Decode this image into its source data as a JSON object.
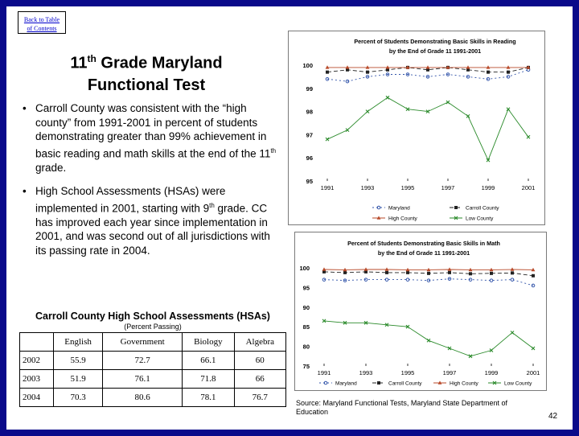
{
  "slide": {
    "toc_link_line1": "Back to Table",
    "toc_link_line2": "of Contents",
    "title_line1_pre": "11",
    "title_line1_sup": "th",
    "title_line1_post": " Grade Maryland",
    "title_line2": "Functional Test",
    "bullet1_pre": "Carroll County was consistent with the “high county” from 1991-2001 in percent of students demonstrating greater than 99% achievement in basic reading and math skills at the end of the 11",
    "bullet1_sup": "th",
    "bullet1_post": " grade.",
    "bullet2_pre": "High School Assessments (HSAs) were implemented in 2001, starting with 9",
    "bullet2_sup": "th",
    "bullet2_post": " grade. CC has improved each year since implementation in 2001, and was second out of all jurisdictions with its passing rate in 2004.",
    "source": "Source: Maryland Functional Tests, Maryland State Department of Education",
    "page_number": "42",
    "frame_color": "#0a0a8a"
  },
  "hsa_table": {
    "title": "Carroll County High School Assessments (HSAs)",
    "subtitle": "(Percent Passing)",
    "columns": [
      "",
      "English",
      "Government",
      "Biology",
      "Algebra"
    ],
    "rows": [
      [
        "2002",
        "55.9",
        "72.7",
        "66.1",
        "60"
      ],
      [
        "2003",
        "51.9",
        "76.1",
        "71.8",
        "66"
      ],
      [
        "2004",
        "70.3",
        "80.6",
        "78.1",
        "76.7"
      ]
    ]
  },
  "chart_data": [
    {
      "type": "line",
      "title": "Percent of Students Demonstrating Basic Skills in Reading by the End of Grade 11 1991-2001",
      "title_line1": "Percent of Students Demonstrating Basic Skills in Reading",
      "title_line2": "by the End of Grade 11 1991-2001",
      "x": [
        1991,
        1992,
        1993,
        1994,
        1995,
        1996,
        1997,
        1998,
        1999,
        2000,
        2001
      ],
      "x_tick_labels": [
        "1991",
        "1993",
        "1995",
        "1997",
        "1999",
        "2001"
      ],
      "ylim": [
        95,
        100
      ],
      "y_ticks": [
        95,
        96,
        97,
        98,
        99,
        100
      ],
      "legend_position": "bottom",
      "series": [
        {
          "name": "Maryland",
          "color": "#3355aa",
          "dash": "2,3",
          "marker": "circle",
          "values": [
            99.4,
            99.3,
            99.5,
            99.6,
            99.6,
            99.5,
            99.6,
            99.5,
            99.4,
            99.5,
            99.8
          ]
        },
        {
          "name": "Carroll County",
          "color": "#222222",
          "dash": "5,3",
          "marker": "square",
          "values": [
            99.7,
            99.8,
            99.7,
            99.8,
            99.9,
            99.8,
            99.9,
            99.8,
            99.7,
            99.7,
            99.9
          ]
        },
        {
          "name": "High County",
          "color": "#b84a2a",
          "dash": "",
          "marker": "triangle",
          "values": [
            99.9,
            99.9,
            99.9,
            99.9,
            99.9,
            99.9,
            99.9,
            99.9,
            99.9,
            99.9,
            99.9
          ]
        },
        {
          "name": "Low County",
          "color": "#2a8a2a",
          "dash": "",
          "marker": "x",
          "values": [
            96.8,
            97.2,
            98.0,
            98.6,
            98.1,
            98.0,
            98.4,
            97.8,
            95.9,
            98.1,
            96.9
          ]
        }
      ]
    },
    {
      "type": "line",
      "title": "Percent of Students Demonstrating Basic Skills in Math by the End of Grade 11 1991-2001",
      "title_line1": "Percent of Students Demonstrating Basic Skills in Math",
      "title_line2": "by the End of Grade 11 1991-2001",
      "x": [
        1991,
        1992,
        1993,
        1994,
        1995,
        1996,
        1997,
        1998,
        1999,
        2000,
        2001
      ],
      "x_tick_labels": [
        "1991",
        "1993",
        "1995",
        "1997",
        "1999",
        "2001"
      ],
      "ylim": [
        75,
        100
      ],
      "y_ticks": [
        75,
        80,
        85,
        90,
        95,
        100
      ],
      "legend_position": "bottom",
      "series": [
        {
          "name": "Maryland",
          "color": "#3355aa",
          "dash": "2,3",
          "marker": "circle",
          "values": [
            97.0,
            96.8,
            97.0,
            97.0,
            97.0,
            96.8,
            97.2,
            97.0,
            96.8,
            97.0,
            95.5
          ]
        },
        {
          "name": "Carroll County",
          "color": "#222222",
          "dash": "5,3",
          "marker": "square",
          "values": [
            99.0,
            98.8,
            99.0,
            98.8,
            98.8,
            98.6,
            98.8,
            98.5,
            98.6,
            98.7,
            98.0
          ]
        },
        {
          "name": "High County",
          "color": "#b84a2a",
          "dash": "",
          "marker": "triangle",
          "values": [
            99.6,
            99.5,
            99.6,
            99.6,
            99.5,
            99.5,
            99.6,
            99.5,
            99.5,
            99.6,
            99.5
          ]
        },
        {
          "name": "Low County",
          "color": "#2a8a2a",
          "dash": "",
          "marker": "x",
          "values": [
            86.5,
            86.0,
            86.0,
            85.5,
            85.0,
            81.5,
            79.5,
            77.5,
            79.0,
            83.5,
            79.5
          ]
        }
      ]
    }
  ]
}
